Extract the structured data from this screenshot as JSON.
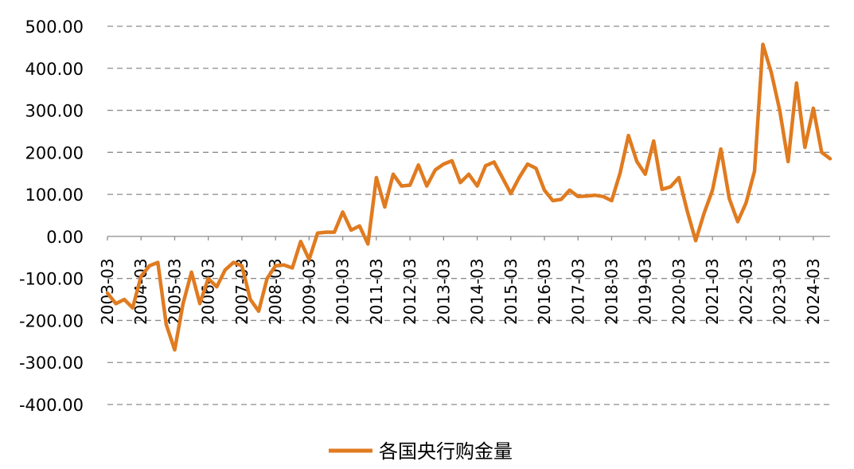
{
  "chart_data": {
    "type": "line",
    "title": "",
    "xlabel": "",
    "ylabel": "",
    "ylim": [
      -400,
      500
    ],
    "yticks": [
      "500.00",
      "400.00",
      "300.00",
      "200.00",
      "100.00",
      "0.00",
      "-100.00",
      "-200.00",
      "-300.00",
      "-400.00"
    ],
    "ytick_values": [
      500,
      400,
      300,
      200,
      100,
      0,
      -100,
      -200,
      -300,
      -400
    ],
    "xticks": [
      "2003-03",
      "2004-03",
      "2005-03",
      "2006-03",
      "2007-03",
      "2008-03",
      "2009-03",
      "2010-03",
      "2011-03",
      "2012-03",
      "2013-03",
      "2014-03",
      "2015-03",
      "2016-03",
      "2017-03",
      "2018-03",
      "2019-03",
      "2020-03",
      "2021-03",
      "2022-03",
      "2023-03",
      "2024-03"
    ],
    "grid": true,
    "legend_position": "bottom",
    "series": [
      {
        "name": "各国央行购金量",
        "color": "#E07B20",
        "start_year": 2003,
        "start_quarter": 1,
        "values": [
          -135,
          -160,
          -150,
          -170,
          -95,
          -70,
          -62,
          -210,
          -270,
          -160,
          -85,
          -160,
          -100,
          -120,
          -80,
          -62,
          -70,
          -150,
          -178,
          -100,
          -70,
          -68,
          -75,
          -12,
          -55,
          8,
          10,
          10,
          58,
          15,
          25,
          -18,
          140,
          70,
          148,
          120,
          122,
          170,
          120,
          158,
          172,
          180,
          128,
          148,
          120,
          168,
          177,
          140,
          102,
          140,
          172,
          162,
          110,
          85,
          88,
          110,
          95,
          96,
          98,
          95,
          85,
          150,
          240,
          178,
          148,
          227,
          112,
          118,
          140,
          60,
          -10,
          55,
          110,
          208,
          90,
          35,
          80,
          155,
          457,
          390,
          300,
          178,
          365,
          212,
          305,
          200,
          185
        ]
      }
    ]
  }
}
